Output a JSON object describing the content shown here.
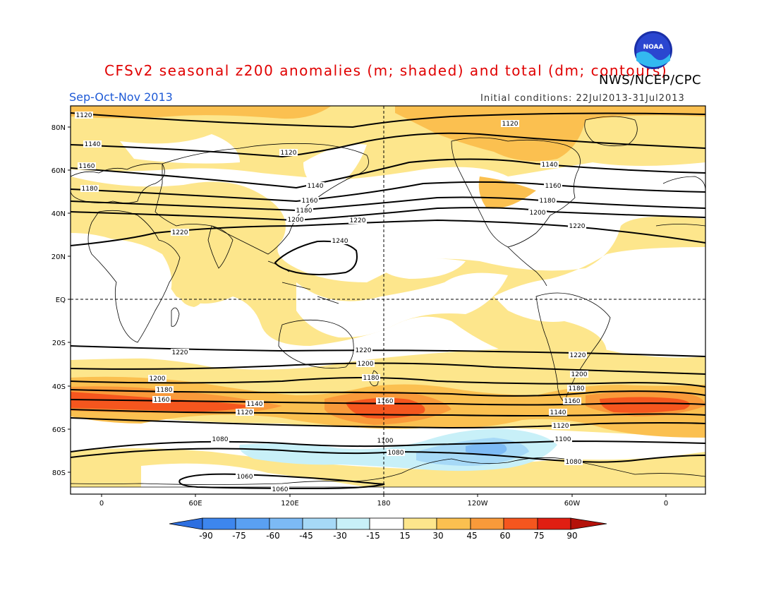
{
  "title": "CFSv2 seasonal z200 anomalies (m; shaded) and total (dm; contours)",
  "agency": "NWS/NCEP/CPC",
  "season": "Sep-Oct-Nov 2013",
  "initial_conditions": "Initial conditions: 22Jul2013-31Jul2013",
  "logo_text": "NOAA",
  "lat_labels": [
    "80N",
    "60N",
    "40N",
    "20N",
    "EQ",
    "20S",
    "40S",
    "60S",
    "80S"
  ],
  "lon_labels": [
    "0",
    "60E",
    "120E",
    "180",
    "120W",
    "60W",
    "0"
  ],
  "colorbar": {
    "labels": [
      "-90",
      "-75",
      "-60",
      "-45",
      "-30",
      "-15",
      "15",
      "30",
      "45",
      "60",
      "75",
      "90"
    ],
    "colors": [
      "#2d6fe0",
      "#3d86ee",
      "#5aa0f2",
      "#7cbaf5",
      "#a6d9f7",
      "#c8f0f8",
      "#ffffff",
      "#fde68c",
      "#fbc050",
      "#f99a3a",
      "#f5561e",
      "#e01e12",
      "#b4120a"
    ]
  },
  "contour_labels": {
    "c1120a": "1120",
    "c1140a": "1140",
    "c1160a": "1160",
    "c1180a": "1180",
    "c1120b": "1120",
    "c1140b": "1140",
    "c1160b": "1160",
    "c1180b": "1180",
    "c1200a": "1200",
    "c1220a": "1220",
    "c1120c": "1120",
    "c1140c": "1140",
    "c1160c": "1160",
    "c1180c": "1180",
    "c1200c": "1200",
    "c1220c": "1220",
    "c1240": "1240",
    "c1220b": "1220",
    "s1220a": "1220",
    "s1220b": "1220",
    "s1220c": "1220",
    "s1200a": "1200",
    "s1200b": "1200",
    "s1200c": "1200",
    "s1180a": "1180",
    "s1180b": "1180",
    "s1180c": "1180",
    "s1160a": "1160",
    "s1160b": "1160",
    "s1160c": "1160",
    "s1140a": "1140",
    "s1140b": "1140",
    "s1120a": "1120",
    "s1120b": "1120",
    "s1100a": "1100",
    "s1100b": "1100",
    "s1080a": "1080",
    "s1080b": "1080",
    "s1080c": "1080",
    "s1060a": "1060",
    "s1060b": "1060"
  }
}
